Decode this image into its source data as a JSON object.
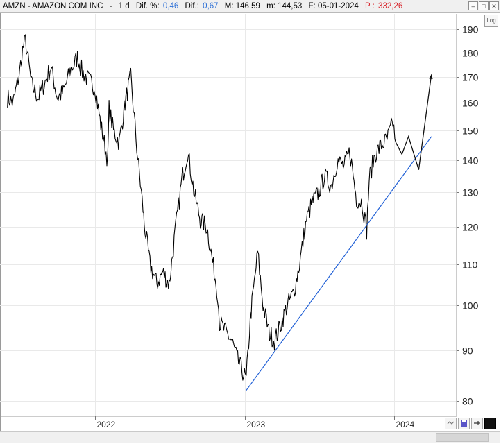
{
  "header": {
    "symbol": "AMZN - AMAZON COM INC",
    "sep": "-",
    "period": "1 d",
    "dif_pct_label": "Dif. %:",
    "dif_pct_value": "0,46",
    "dif_label": "Dif.:",
    "dif_value": "0,67",
    "max_label": "M:",
    "max_value": "146,59",
    "min_label": "m:",
    "min_value": "144,53",
    "date_label": "F:",
    "date_value": "05-01-2024",
    "p_label": "P :",
    "p_value": "332,26"
  },
  "log_button_label": "Log",
  "window_buttons": {
    "minimize": "–",
    "maximize": "□",
    "close": "✕"
  },
  "toolbar": {
    "zoom_icon": "zoom-icon",
    "save_icon": "floppy-icon",
    "pin_icon": "pin-icon",
    "color_icon": "color-square-icon"
  },
  "colors": {
    "price": "#000000",
    "trendline": "#1f5fd6",
    "grid": "#e9e9e9",
    "dif_value": "#2c6fd6",
    "p_value": "#d8232a"
  },
  "chart_data": {
    "type": "line",
    "yscale": "log",
    "ylim": [
      76,
      200
    ],
    "yticks": [
      190,
      180,
      170,
      160,
      150,
      140,
      130,
      120,
      110,
      100,
      90,
      80
    ],
    "xticks": [
      "2022",
      "2023",
      "2024"
    ],
    "grid": true,
    "series": [
      {
        "x": [
          "2021-06-01",
          "2021-06-15",
          "2021-07-01",
          "2021-07-08",
          "2021-07-15",
          "2021-07-30",
          "2021-08-15",
          "2021-09-01",
          "2021-09-15",
          "2021-10-01",
          "2021-10-15",
          "2021-11-01",
          "2021-11-19",
          "2021-12-01",
          "2021-12-15",
          "2022-01-01",
          "2022-01-15",
          "2022-02-01",
          "2022-02-04",
          "2022-02-15",
          "2022-03-01",
          "2022-03-15",
          "2022-03-29",
          "2022-04-15",
          "2022-04-28",
          "2022-05-01",
          "2022-05-15",
          "2022-06-01",
          "2022-06-15",
          "2022-07-01",
          "2022-07-15",
          "2022-08-01",
          "2022-08-15",
          "2022-09-01",
          "2022-09-15",
          "2022-10-01",
          "2022-10-27",
          "2022-11-01",
          "2022-11-15",
          "2022-12-01",
          "2022-12-15",
          "2023-01-05",
          "2023-01-15",
          "2023-02-02",
          "2023-02-15",
          "2023-03-01",
          "2023-03-15",
          "2023-04-01",
          "2023-04-15",
          "2023-05-01",
          "2023-05-15",
          "2023-06-01",
          "2023-06-15",
          "2023-07-01",
          "2023-07-15",
          "2023-08-01",
          "2023-08-15",
          "2023-09-01",
          "2023-09-15",
          "2023-10-01",
          "2023-10-15",
          "2023-10-26",
          "2023-11-01",
          "2023-11-15",
          "2023-12-01",
          "2023-12-15",
          "2023-12-29",
          "2024-01-05"
        ],
        "y": [
          162,
          160,
          172,
          181,
          185,
          167,
          162,
          168,
          174,
          162,
          164,
          172,
          178,
          172,
          169,
          166,
          152,
          140,
          158,
          150,
          146,
          160,
          170,
          141,
          125,
          121,
          110,
          105,
          108,
          105,
          118,
          134,
          143,
          129,
          122,
          120,
          103,
          96,
          94,
          92,
          88,
          84,
          97,
          113,
          100,
          94,
          92,
          96,
          100,
          103,
          110,
          122,
          127,
          130,
          135,
          132,
          140,
          138,
          143,
          128,
          127,
          119,
          134,
          142,
          145,
          147,
          153,
          146
        ]
      }
    ],
    "annotations": [
      {
        "type": "trendline",
        "from": [
          "2023-01-05",
          82
        ],
        "to": [
          "2024-04-01",
          148
        ]
      },
      {
        "type": "projection",
        "points": [
          [
            "2024-01-05",
            146
          ],
          [
            "2024-01-20",
            142
          ],
          [
            "2024-02-05",
            148
          ],
          [
            "2024-03-01",
            137
          ],
          [
            "2024-04-01",
            171
          ]
        ]
      }
    ]
  }
}
